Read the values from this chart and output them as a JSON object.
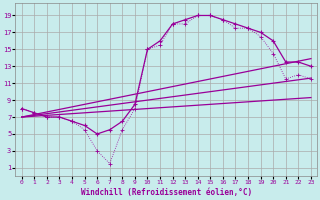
{
  "xlabel": "Windchill (Refroidissement éolien,°C)",
  "background_color": "#c8ecec",
  "grid_color": "#aaaaaa",
  "line_color": "#990099",
  "xticks": [
    0,
    1,
    2,
    3,
    4,
    5,
    6,
    7,
    8,
    9,
    10,
    11,
    12,
    13,
    14,
    15,
    16,
    17,
    18,
    19,
    20,
    21,
    22,
    23
  ],
  "yticks": [
    1,
    3,
    5,
    7,
    9,
    11,
    13,
    15,
    17,
    19
  ],
  "hours": [
    0,
    1,
    2,
    3,
    4,
    5,
    6,
    7,
    8,
    9,
    10,
    11,
    12,
    13,
    14,
    15,
    16,
    17,
    18,
    19,
    20,
    21,
    22,
    23
  ],
  "main_curve": [
    8,
    7.5,
    7,
    7,
    6.5,
    6,
    5,
    5.5,
    6.5,
    8.5,
    15,
    16,
    18,
    18.5,
    19,
    19,
    18.5,
    18,
    17.5,
    17,
    16,
    13.5,
    13.5,
    13
  ],
  "windchill_curve": [
    8,
    7.5,
    7,
    7,
    6.5,
    5.5,
    3,
    1.5,
    5.5,
    8,
    15,
    15.5,
    18,
    18,
    19,
    19,
    18.5,
    17.5,
    17.5,
    16.5,
    14.5,
    11.5,
    12,
    11.5
  ],
  "line1": [
    7,
    7.1,
    7.2,
    7.3,
    7.4,
    7.5,
    7.6,
    7.7,
    7.8,
    7.9,
    8.0,
    8.1,
    8.2,
    8.3,
    8.4,
    8.5,
    8.6,
    8.7,
    8.8,
    8.9,
    9.0,
    9.1,
    9.2,
    9.3
  ],
  "line2": [
    7,
    7.2,
    7.4,
    7.6,
    7.8,
    8.0,
    8.2,
    8.4,
    8.6,
    8.8,
    9.0,
    9.2,
    9.4,
    9.6,
    9.8,
    10.0,
    10.2,
    10.4,
    10.6,
    10.8,
    11.0,
    11.2,
    11.4,
    11.6
  ],
  "line3": [
    7,
    7.3,
    7.6,
    7.9,
    8.2,
    8.5,
    8.8,
    9.1,
    9.4,
    9.7,
    10.0,
    10.3,
    10.6,
    10.9,
    11.2,
    11.5,
    11.8,
    12.1,
    12.4,
    12.7,
    13.0,
    13.3,
    13.6,
    13.9
  ]
}
